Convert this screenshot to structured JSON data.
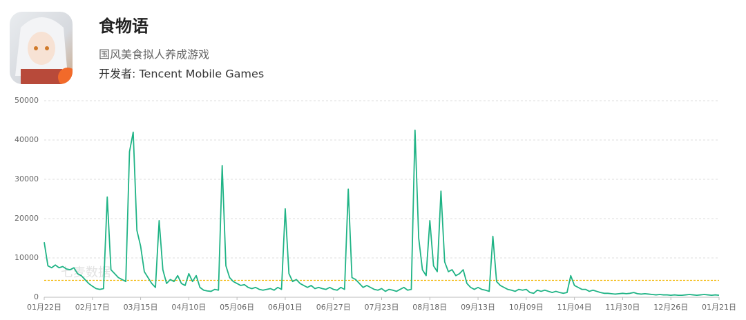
{
  "app": {
    "name": "食物语",
    "subtitle": "国风美食拟人养成游戏",
    "developer": "开发者: Tencent Mobile Games"
  },
  "chart_data": {
    "type": "line",
    "watermark": "七麦数据",
    "color": "#1fb385",
    "reference_line": {
      "value": 4300,
      "color": "#f2b600"
    },
    "ylim": [
      0,
      50000
    ],
    "yticks": [
      0,
      10000,
      20000,
      30000,
      40000,
      50000
    ],
    "grid": true,
    "categories": [
      "01月22日",
      null,
      null,
      null,
      null,
      null,
      null,
      null,
      null,
      null,
      null,
      null,
      null,
      "02月17日",
      null,
      null,
      null,
      null,
      null,
      null,
      null,
      null,
      null,
      null,
      null,
      null,
      "03月15日",
      null,
      null,
      null,
      null,
      null,
      null,
      null,
      null,
      null,
      null,
      null,
      null,
      "04月10日",
      null,
      null,
      null,
      null,
      null,
      null,
      null,
      null,
      null,
      null,
      null,
      null,
      "05月06日",
      null,
      null,
      null,
      null,
      null,
      null,
      null,
      null,
      null,
      null,
      null,
      null,
      "06月01日",
      null,
      null,
      null,
      null,
      null,
      null,
      null,
      null,
      null,
      null,
      null,
      null,
      "06月27日",
      null,
      null,
      null,
      null,
      null,
      null,
      null,
      null,
      null,
      null,
      null,
      null,
      "07月23日",
      null,
      null,
      null,
      null,
      null,
      null,
      null,
      null,
      null,
      null,
      null,
      null,
      "08月18日",
      null,
      null,
      null,
      null,
      null,
      null,
      null,
      null,
      null,
      null,
      null,
      null,
      "09月13日",
      null,
      null,
      null,
      null,
      null,
      null,
      null,
      null,
      null,
      null,
      null,
      null,
      "10月09日",
      null,
      null,
      null,
      null,
      null,
      null,
      null,
      null,
      null,
      null,
      null,
      null,
      "11月04日",
      null,
      null,
      null,
      null,
      null,
      null,
      null,
      null,
      null,
      null,
      null,
      null,
      "11月30日",
      null,
      null,
      null,
      null,
      null,
      null,
      null,
      null,
      null,
      null,
      null,
      null,
      "12月26日",
      null,
      null,
      null,
      null,
      null,
      null,
      null,
      null,
      null,
      null,
      null,
      null,
      "01月21日"
    ],
    "values": [
      14000,
      8000,
      7500,
      8200,
      7500,
      7800,
      7200,
      7000,
      7500,
      6000,
      5500,
      4500,
      3500,
      2800,
      2200,
      2000,
      2200,
      25500,
      7000,
      6000,
      5000,
      4500,
      4000,
      37000,
      42000,
      17000,
      13000,
      6500,
      5000,
      3500,
      2500,
      19500,
      7000,
      3500,
      4500,
      4000,
      5500,
      3500,
      3000,
      6000,
      4000,
      5500,
      2500,
      1800,
      1600,
      1500,
      2000,
      1800,
      33500,
      8000,
      5000,
      4000,
      3500,
      3000,
      3200,
      2500,
      2200,
      2500,
      2000,
      1800,
      2000,
      2200,
      1800,
      2500,
      2000,
      22500,
      6000,
      4000,
      4500,
      3500,
      3000,
      2500,
      3000,
      2200,
      2500,
      2200,
      2000,
      2500,
      2000,
      1800,
      2500,
      2000,
      27500,
      5000,
      4500,
      3500,
      2500,
      3000,
      2500,
      2000,
      1800,
      2200,
      1500,
      2000,
      1800,
      1500,
      2000,
      2500,
      1800,
      2000,
      42500,
      15000,
      7000,
      5500,
      19500,
      8000,
      6500,
      27000,
      9000,
      6500,
      7000,
      5500,
      6000,
      7000,
      3500,
      2500,
      2000,
      2500,
      2000,
      1800,
      1500,
      15500,
      4000,
      3000,
      2500,
      2000,
      1800,
      1500,
      2000,
      1800,
      2000,
      1200,
      1000,
      1800,
      1500,
      1800,
      1500,
      1200,
      1500,
      1200,
      1000,
      1200,
      5500,
      3000,
      2500,
      2000,
      2000,
      1500,
      1800,
      1500,
      1200,
      1000,
      1000,
      900,
      800,
      900,
      1000,
      900,
      1000,
      1200,
      900,
      800,
      900,
      800,
      700,
      600,
      700,
      600,
      600,
      500,
      600,
      500,
      500,
      600,
      700,
      600,
      500,
      600,
      700,
      600,
      500,
      600,
      500
    ]
  }
}
